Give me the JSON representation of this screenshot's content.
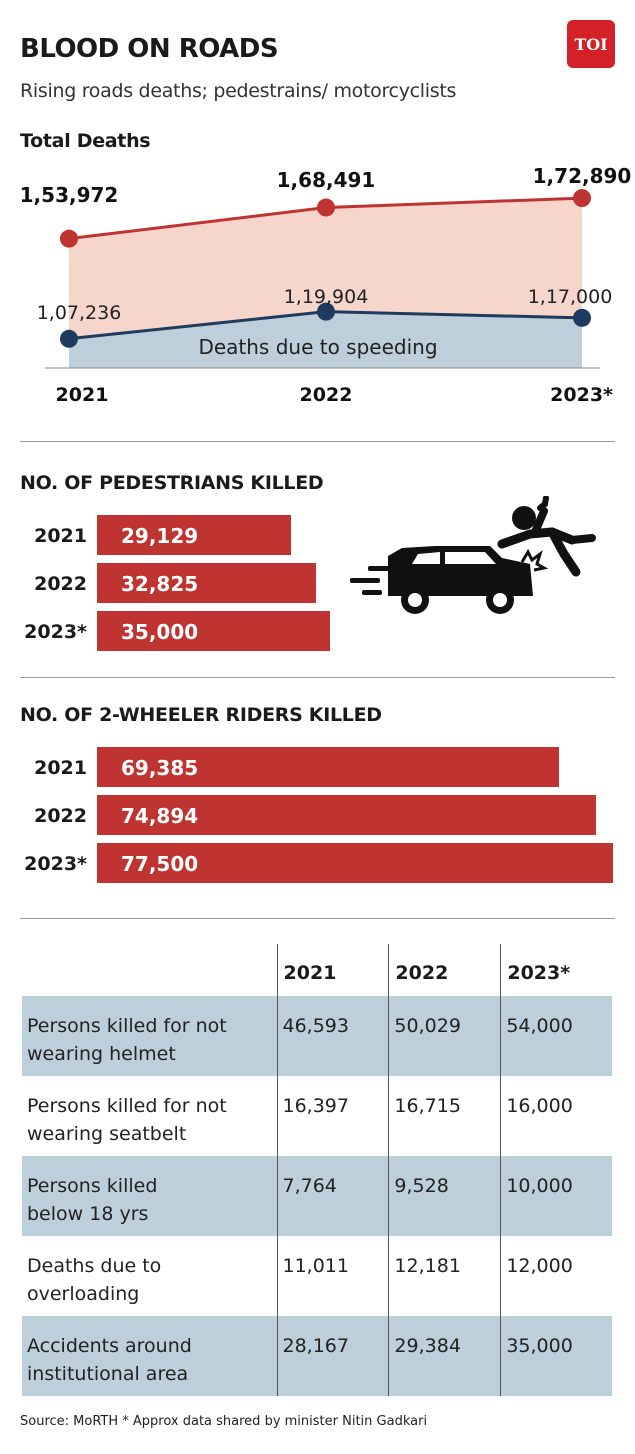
{
  "title": "BLOOD ON ROADS",
  "subtitle": "Rising roads deaths; pedestrains/ motorcyclists",
  "logo": "TOI",
  "colors": {
    "red": "#bf3430",
    "navy": "#1f3a5f",
    "pink_fill": "#f6d6cb",
    "blue_fill": "#bccfdb"
  },
  "icons": [
    "car-crash-pedestrian-icon"
  ],
  "chart_data": [
    {
      "type": "line",
      "title": "Total Deaths",
      "categories": [
        "2021",
        "2022",
        "2023*"
      ],
      "series": [
        {
          "name": "",
          "values": [
            153972,
            168491,
            172890
          ],
          "labels": [
            "1,53,972",
            "1,68,491",
            "1,72,890"
          ],
          "color": "#bf3430"
        },
        {
          "name": "Deaths due to speeding",
          "values": [
            107236,
            119904,
            117000
          ],
          "labels": [
            "1,07,236",
            "1,19,904",
            "1,17,000"
          ],
          "color": "#1f3a5f"
        }
      ],
      "grid": false
    },
    {
      "type": "bar",
      "title": "NO. OF PEDESTRIANS KILLED",
      "categories": [
        "2021",
        "2022",
        "2023*"
      ],
      "values": [
        29129,
        32825,
        35000
      ],
      "labels": [
        "29,129",
        "32,825",
        "35,000"
      ],
      "orientation": "horizontal"
    },
    {
      "type": "bar",
      "title": "NO. OF 2-WHEELER RIDERS KILLED",
      "categories": [
        "2021",
        "2022",
        "2023*"
      ],
      "values": [
        69385,
        74894,
        77500
      ],
      "labels": [
        "69,385",
        "74,894",
        "77,500"
      ],
      "orientation": "horizontal"
    },
    {
      "type": "table",
      "columns": [
        "",
        "2021",
        "2022",
        "2023*"
      ],
      "rows": [
        {
          "label_1": "Persons killed for not",
          "label_2": "wearing helmet",
          "values": [
            "46,593",
            "50,029",
            "54,000"
          ]
        },
        {
          "label_1": "Persons killed for not",
          "label_2": "wearing seatbelt",
          "values": [
            "16,397",
            "16,715",
            "16,000"
          ]
        },
        {
          "label_1": "Persons killed",
          "label_2": "below 18 yrs",
          "values": [
            "7,764",
            "9,528",
            "10,000"
          ]
        },
        {
          "label_1": "Deaths due to",
          "label_2": "overloading",
          "values": [
            "11,011",
            "12,181",
            "12,000"
          ]
        },
        {
          "label_1": "Accidents around",
          "label_2": "institutional area",
          "values": [
            "28,167",
            "29,384",
            "35,000"
          ]
        }
      ]
    }
  ],
  "source": "Source: MoRTH * Approx data shared by minister Nitin Gadkari"
}
